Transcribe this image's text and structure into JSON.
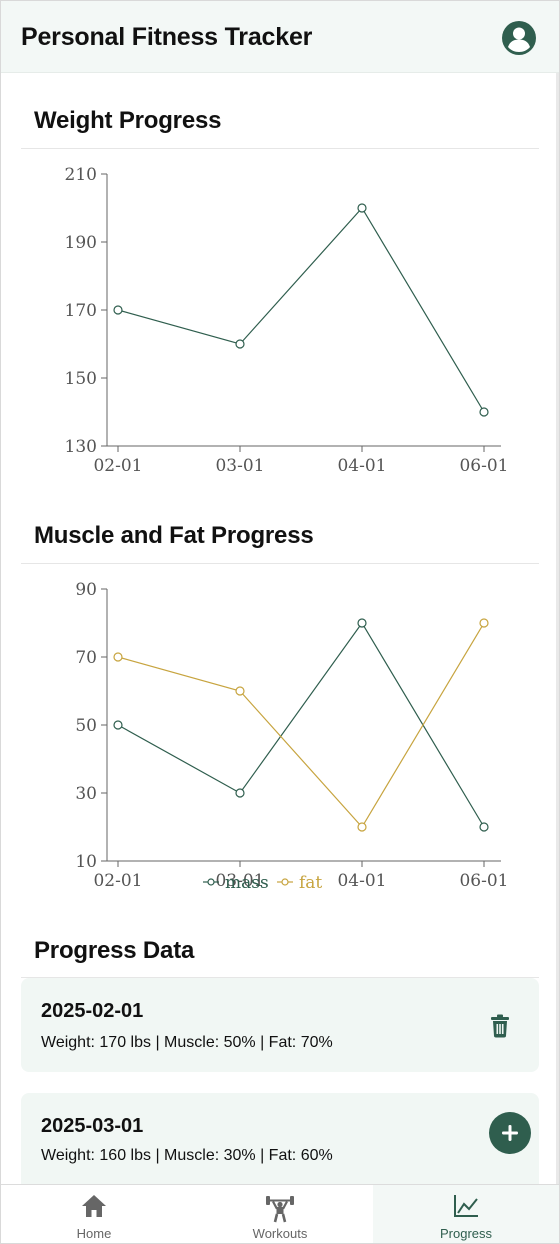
{
  "header": {
    "title": "Personal Fitness Tracker",
    "profile_icon": "account-circle-icon"
  },
  "sections": {
    "weight_title": "Weight Progress",
    "muscle_fat_title": "Muscle and Fat Progress",
    "progress_data_title": "Progress Data"
  },
  "colors": {
    "accent": "#2f5e4e",
    "fat": "#c7a43f",
    "card_bg": "#f1f7f4",
    "header_bg": "#f3f8f6"
  },
  "chart_data": [
    {
      "type": "line",
      "categories": [
        "02-01",
        "03-01",
        "04-01",
        "06-01"
      ],
      "series": [
        {
          "values": [
            170,
            160,
            200,
            140
          ],
          "color": "#2f5e4e"
        }
      ],
      "ylim": [
        130,
        210
      ],
      "yticks": [
        130,
        150,
        170,
        190,
        210
      ],
      "grid": false
    },
    {
      "type": "line",
      "categories": [
        "02-01",
        "03-01",
        "04-01",
        "06-01"
      ],
      "series": [
        {
          "name": "mass",
          "values": [
            50,
            30,
            80,
            20
          ],
          "color": "#2f5e4e"
        },
        {
          "name": "fat",
          "values": [
            70,
            60,
            20,
            80
          ],
          "color": "#c7a43f"
        }
      ],
      "ylim": [
        10,
        90
      ],
      "yticks": [
        10,
        30,
        50,
        70,
        90
      ],
      "grid": false,
      "legend": "bottom-center"
    }
  ],
  "entries": [
    {
      "date": "2025-02-01",
      "stats": "Weight: 170 lbs  |  Muscle: 50%  |  Fat: 70%"
    },
    {
      "date": "2025-03-01",
      "stats": "Weight: 160 lbs  |  Muscle: 30%  |  Fat: 60%"
    }
  ],
  "nav": {
    "items": [
      {
        "label": "Home",
        "icon": "home-icon"
      },
      {
        "label": "Workouts",
        "icon": "weightlifter-icon"
      },
      {
        "label": "Progress",
        "icon": "chart-line-icon",
        "active": true
      }
    ]
  }
}
